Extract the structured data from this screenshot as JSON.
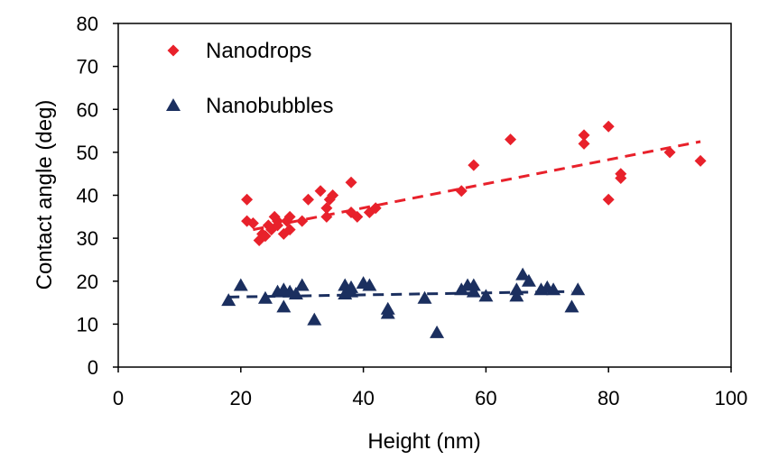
{
  "chart_data": {
    "type": "scatter",
    "title": "",
    "xlabel": "Height (nm)",
    "ylabel": "Contact angle (deg)",
    "xlim": [
      0,
      100
    ],
    "ylim": [
      0,
      80
    ],
    "xticks": [
      0,
      20,
      40,
      60,
      80,
      100
    ],
    "yticks": [
      0,
      10,
      20,
      30,
      40,
      50,
      60,
      70,
      80
    ],
    "grid": false,
    "legend_position": "top-left",
    "series": [
      {
        "name": "Nanodrops",
        "marker": "diamond",
        "color": "#e8212b",
        "points": [
          [
            21,
            39
          ],
          [
            21,
            34
          ],
          [
            22,
            33.5
          ],
          [
            23,
            29.5
          ],
          [
            23.5,
            31
          ],
          [
            24,
            30.5
          ],
          [
            24.5,
            33
          ],
          [
            25,
            32
          ],
          [
            25.5,
            35
          ],
          [
            26,
            34
          ],
          [
            26,
            33
          ],
          [
            27,
            31
          ],
          [
            27.5,
            34
          ],
          [
            28,
            32
          ],
          [
            28,
            35
          ],
          [
            30,
            34
          ],
          [
            31,
            39
          ],
          [
            33,
            41
          ],
          [
            34,
            35
          ],
          [
            34,
            37
          ],
          [
            34.5,
            39
          ],
          [
            35,
            40
          ],
          [
            38,
            43
          ],
          [
            38,
            36
          ],
          [
            39,
            35
          ],
          [
            41,
            36
          ],
          [
            42,
            37
          ],
          [
            56,
            41
          ],
          [
            58,
            47
          ],
          [
            64,
            53
          ],
          [
            76,
            54
          ],
          [
            76,
            52
          ],
          [
            80,
            56
          ],
          [
            80,
            39
          ],
          [
            82,
            45
          ],
          [
            82,
            44
          ],
          [
            90,
            50
          ],
          [
            95,
            48
          ]
        ],
        "trendline": {
          "x": [
            22,
            95
          ],
          "y": [
            32,
            52.5
          ]
        }
      },
      {
        "name": "Nanobubbles",
        "marker": "triangle",
        "color": "#1b2f5f",
        "points": [
          [
            18,
            15.5
          ],
          [
            20,
            19
          ],
          [
            24,
            16
          ],
          [
            26,
            17.5
          ],
          [
            27,
            18
          ],
          [
            27,
            14
          ],
          [
            28,
            17.5
          ],
          [
            29,
            17
          ],
          [
            30,
            19
          ],
          [
            32,
            11
          ],
          [
            37,
            19
          ],
          [
            37,
            17
          ],
          [
            38,
            18.5
          ],
          [
            38,
            17.5
          ],
          [
            40,
            19.5
          ],
          [
            41,
            19
          ],
          [
            44,
            13.5
          ],
          [
            44,
            12.5
          ],
          [
            50,
            16
          ],
          [
            52,
            8
          ],
          [
            56,
            18
          ],
          [
            57,
            19
          ],
          [
            58,
            19
          ],
          [
            58,
            17.5
          ],
          [
            60,
            16.5
          ],
          [
            65,
            18
          ],
          [
            65,
            16.5
          ],
          [
            66,
            21.5
          ],
          [
            67,
            20
          ],
          [
            69,
            18
          ],
          [
            70,
            18.5
          ],
          [
            71,
            18
          ],
          [
            74,
            14
          ],
          [
            75,
            18
          ]
        ],
        "trendline": {
          "x": [
            18,
            74
          ],
          "y": [
            16.3,
            17.6
          ]
        }
      }
    ]
  }
}
